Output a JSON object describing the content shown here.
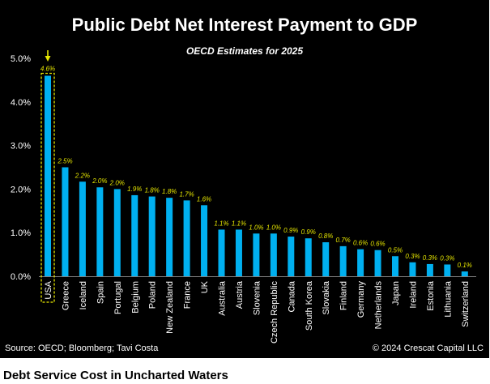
{
  "caption": "Debt Service Cost in Uncharted Waters",
  "colors": {
    "bar": "#00b0f0",
    "label": "#e6e600",
    "highlight": "#e6e600",
    "axis": "#7f7f7f",
    "background": "#000000"
  },
  "chart_data": {
    "type": "bar",
    "title": "Public Debt Net Interest Payment to GDP",
    "subtitle": "OECD Estimates for 2025",
    "xlabel": "",
    "ylabel": "",
    "ylim": [
      0,
      5
    ],
    "yticks": [
      0,
      1,
      2,
      3,
      4,
      5
    ],
    "ytick_labels": [
      "0.0%",
      "1.0%",
      "2.0%",
      "3.0%",
      "4.0%",
      "5.0%"
    ],
    "grid": false,
    "legend": "none",
    "unit": "%",
    "categories": [
      "USA",
      "Greece",
      "Iceland",
      "Spain",
      "Portugal",
      "Belgium",
      "Poland",
      "New Zealand",
      "France",
      "UK",
      "Australia",
      "Austria",
      "Slovenia",
      "Czech Republic",
      "Canada",
      "South Korea",
      "Slovakia",
      "Finland",
      "Germany",
      "Netherlands",
      "Japan",
      "Ireland",
      "Estonia",
      "Lithuania",
      "Switzerland"
    ],
    "values": [
      4.6,
      2.5,
      2.2,
      2.0,
      2.0,
      1.9,
      1.8,
      1.8,
      1.7,
      1.6,
      1.1,
      1.1,
      1.0,
      1.0,
      0.9,
      0.9,
      0.8,
      0.7,
      0.6,
      0.6,
      0.5,
      0.3,
      0.3,
      0.3,
      0.1
    ],
    "plot_values": [
      4.6,
      2.5,
      2.17,
      2.04,
      2.0,
      1.86,
      1.83,
      1.8,
      1.74,
      1.63,
      1.07,
      1.07,
      0.98,
      0.98,
      0.91,
      0.87,
      0.78,
      0.69,
      0.62,
      0.6,
      0.46,
      0.32,
      0.28,
      0.27,
      0.11
    ],
    "data_labels": [
      "4.6%",
      "2.5%",
      "2.2%",
      "2.0%",
      "2.0%",
      "1.9%",
      "1.8%",
      "1.8%",
      "1.7%",
      "1.6%",
      "1.1%",
      "1.1%",
      "1.0%",
      "1.0%",
      "0.9%",
      "0.9%",
      "0.8%",
      "0.7%",
      "0.6%",
      "0.6%",
      "0.5%",
      "0.3%",
      "0.3%",
      "0.3%",
      "0.1%"
    ],
    "highlight": {
      "category": "USA",
      "annotation": "down-arrow-marker"
    },
    "source": "Source: OECD; Bloomberg; Tavi Costa",
    "copyright": "© 2024 Crescat Capital LLC"
  }
}
